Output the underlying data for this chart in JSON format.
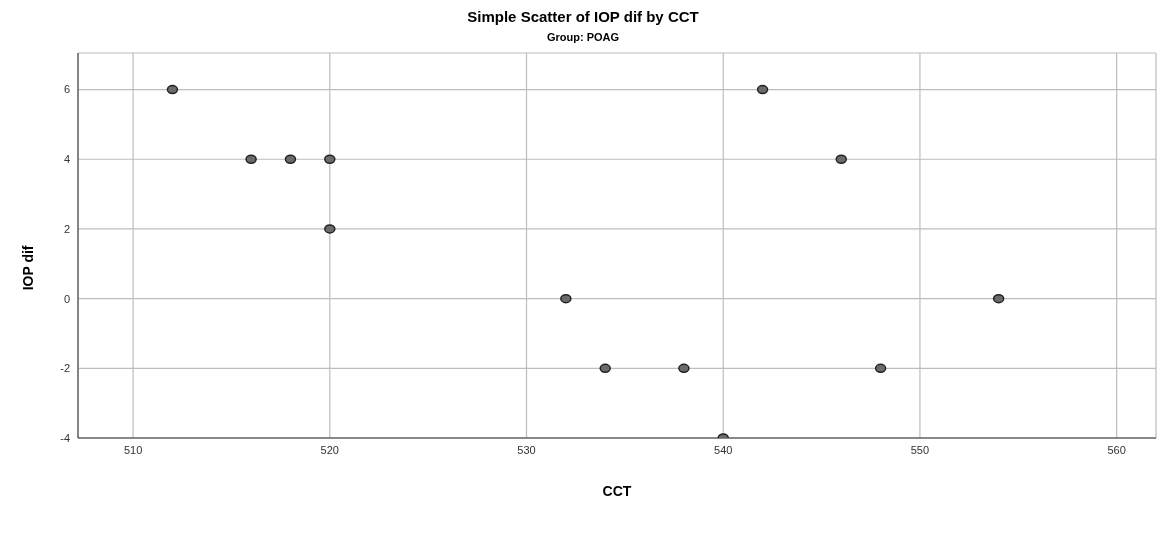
{
  "chart_data": {
    "type": "scatter",
    "title": "Simple Scatter of IOP dif by CCT",
    "subtitle": "Group: POAG",
    "xlabel": "CCT",
    "ylabel": "IOP dif",
    "x": [
      512,
      516,
      518,
      520,
      520,
      532,
      534,
      538,
      540,
      542,
      546,
      548,
      554
    ],
    "series": [
      {
        "color": "#6b6b6b",
        "values": [
          6,
          4,
          4,
          4,
          2,
          0,
          -2,
          -2,
          -4,
          6,
          4,
          -2,
          0
        ]
      }
    ],
    "xlim": [
      507.2,
      562
    ],
    "xticks": [
      510,
      520,
      530,
      540,
      550,
      560
    ],
    "ylim": [
      -4,
      7.05
    ],
    "yticks": [
      -4,
      -2,
      0,
      2,
      4,
      6
    ],
    "grid": true,
    "marker": "circle"
  }
}
